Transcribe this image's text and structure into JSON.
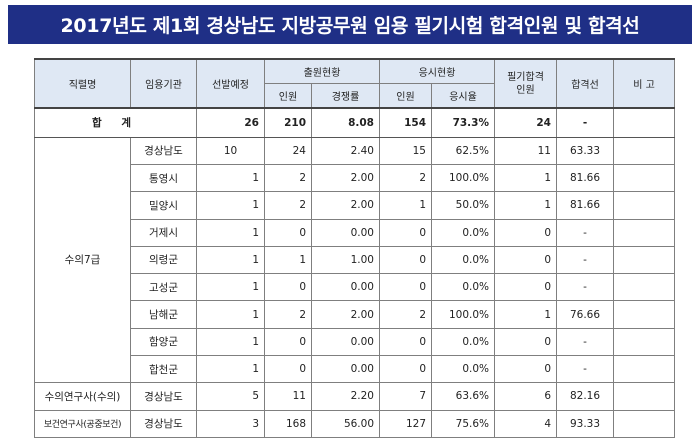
{
  "title": "2017년도 제1회 경상남도 지방공무원 임용 필기시험 합격인원 및 합격선",
  "headers": {
    "job": "직렬명",
    "agency": "임용기관",
    "planned": "선발예정",
    "applicants_group": "출원현황",
    "applicants_count": "인원",
    "competition_rate": "경쟁률",
    "exam_group": "응시현황",
    "exam_count": "인원",
    "exam_rate": "응시율",
    "passed": "필기합격 인원",
    "cutoff": "합격선",
    "remarks": "비 고"
  },
  "total": {
    "label": "합 계",
    "planned": "26",
    "applicants": "210",
    "competition": "8.08",
    "examinees": "154",
    "exam_rate": "73.3%",
    "passed": "24",
    "cutoff": "-"
  },
  "rows": [
    {
      "job": "수의7급",
      "agency": "경상남도",
      "planned": "10",
      "applicants": "24",
      "competition": "2.40",
      "examinees": "15",
      "exam_rate": "62.5%",
      "passed": "11",
      "cutoff": "63.33"
    },
    {
      "job": "",
      "agency": "통영시",
      "planned": "1",
      "applicants": "2",
      "competition": "2.00",
      "examinees": "2",
      "exam_rate": "100.0%",
      "passed": "1",
      "cutoff": "81.66"
    },
    {
      "job": "",
      "agency": "밀양시",
      "planned": "1",
      "applicants": "2",
      "competition": "2.00",
      "examinees": "1",
      "exam_rate": "50.0%",
      "passed": "1",
      "cutoff": "81.66"
    },
    {
      "job": "",
      "agency": "거제시",
      "planned": "1",
      "applicants": "0",
      "competition": "0.00",
      "examinees": "0",
      "exam_rate": "0.0%",
      "passed": "0",
      "cutoff": "-"
    },
    {
      "job": "",
      "agency": "의령군",
      "planned": "1",
      "applicants": "1",
      "competition": "1.00",
      "examinees": "0",
      "exam_rate": "0.0%",
      "passed": "0",
      "cutoff": "-"
    },
    {
      "job": "",
      "agency": "고성군",
      "planned": "1",
      "applicants": "0",
      "competition": "0.00",
      "examinees": "0",
      "exam_rate": "0.0%",
      "passed": "0",
      "cutoff": "-"
    },
    {
      "job": "",
      "agency": "남해군",
      "planned": "1",
      "applicants": "2",
      "competition": "2.00",
      "examinees": "2",
      "exam_rate": "100.0%",
      "passed": "1",
      "cutoff": "76.66"
    },
    {
      "job": "",
      "agency": "함양군",
      "planned": "1",
      "applicants": "0",
      "competition": "0.00",
      "examinees": "0",
      "exam_rate": "0.0%",
      "passed": "0",
      "cutoff": "-"
    },
    {
      "job": "",
      "agency": "합천군",
      "planned": "1",
      "applicants": "0",
      "competition": "0.00",
      "examinees": "0",
      "exam_rate": "0.0%",
      "passed": "0",
      "cutoff": "-"
    },
    {
      "job": "수의연구사(수의)",
      "agency": "경상남도",
      "planned": "5",
      "applicants": "11",
      "competition": "2.20",
      "examinees": "7",
      "exam_rate": "63.6%",
      "passed": "6",
      "cutoff": "82.16"
    },
    {
      "job": "보건연구사(공중보건)",
      "agency": "경상남도",
      "planned": "3",
      "applicants": "168",
      "competition": "56.00",
      "examinees": "127",
      "exam_rate": "75.6%",
      "passed": "4",
      "cutoff": "93.33"
    }
  ]
}
